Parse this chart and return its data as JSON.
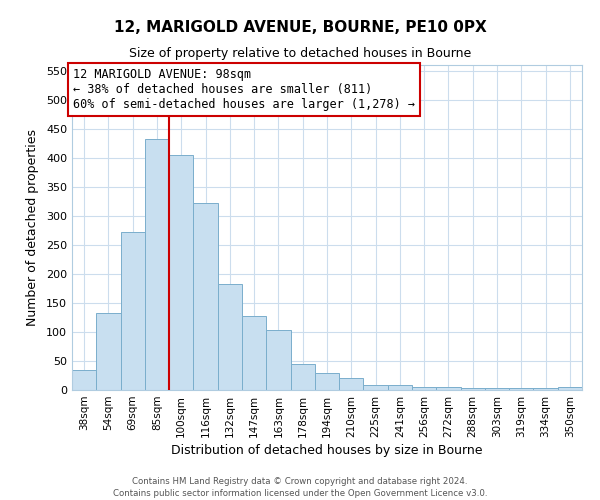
{
  "title": "12, MARIGOLD AVENUE, BOURNE, PE10 0PX",
  "subtitle": "Size of property relative to detached houses in Bourne",
  "xlabel": "Distribution of detached houses by size in Bourne",
  "ylabel": "Number of detached properties",
  "bar_color": "#c8dff0",
  "bar_edge_color": "#7aaecc",
  "vline_color": "#cc0000",
  "categories": [
    "38sqm",
    "54sqm",
    "69sqm",
    "85sqm",
    "100sqm",
    "116sqm",
    "132sqm",
    "147sqm",
    "163sqm",
    "178sqm",
    "194sqm",
    "210sqm",
    "225sqm",
    "241sqm",
    "256sqm",
    "272sqm",
    "288sqm",
    "303sqm",
    "319sqm",
    "334sqm",
    "350sqm"
  ],
  "values": [
    35,
    133,
    272,
    432,
    405,
    323,
    183,
    128,
    103,
    45,
    30,
    20,
    8,
    8,
    5,
    5,
    3,
    3,
    3,
    3,
    5
  ],
  "ylim": [
    0,
    560
  ],
  "yticks": [
    0,
    50,
    100,
    150,
    200,
    250,
    300,
    350,
    400,
    450,
    500,
    550
  ],
  "annotation_line1": "12 MARIGOLD AVENUE: 98sqm",
  "annotation_line2": "← 38% of detached houses are smaller (811)",
  "annotation_line3": "60% of semi-detached houses are larger (1,278) →",
  "annotation_box_color": "#ffffff",
  "annotation_box_edge": "#cc0000",
  "footer1": "Contains HM Land Registry data © Crown copyright and database right 2024.",
  "footer2": "Contains public sector information licensed under the Open Government Licence v3.0.",
  "background_color": "#ffffff",
  "grid_color": "#ccdded"
}
